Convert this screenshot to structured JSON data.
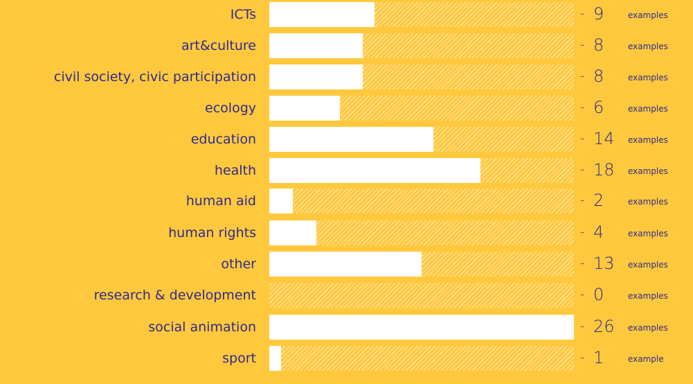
{
  "chart_data": {
    "type": "bar",
    "orientation": "horizontal",
    "categories": [
      "ICTs",
      "art&culture",
      "civil society, civic participation",
      "ecology",
      "education",
      "health",
      "human aid",
      "human rights",
      "other",
      "research & development",
      "social animation",
      "sport"
    ],
    "values": [
      9,
      8,
      8,
      6,
      14,
      18,
      2,
      4,
      13,
      0,
      26,
      1
    ],
    "value_prefix": "-",
    "unit_labels": [
      "examples",
      "examples",
      "examples",
      "examples",
      "examples",
      "examples",
      "examples",
      "examples",
      "examples",
      "examples",
      "examples",
      "example"
    ],
    "xlim": [
      0,
      26
    ],
    "title": "",
    "xlabel": "",
    "ylabel": "",
    "grid": false,
    "legend": "none",
    "colors": {
      "background": "#FFC83D",
      "bar": "#FFFFFF",
      "text": "#2E2A8C"
    }
  }
}
